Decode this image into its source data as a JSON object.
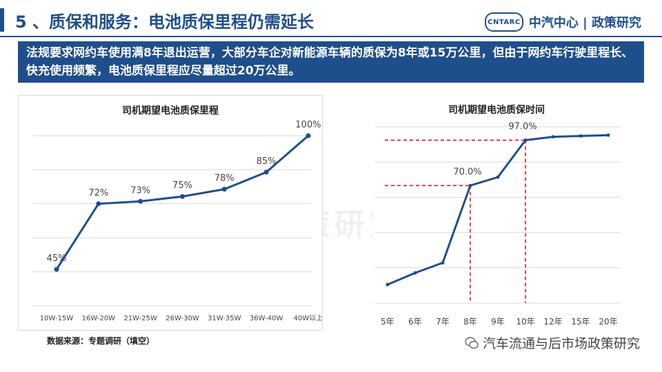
{
  "header": {
    "title": "5 、质保和服务：电池质保里程仍需延长",
    "brand_logo": "CNTARC",
    "brand_text": "中汽中心 | 政策研究"
  },
  "banner": {
    "text": "法规要求网约车使用满8年退出运营，大部分车企对新能源车辆的质保为8年或15万公里，但由于网约车行驶里程长、快充使用频繁，电池质保里程应尽量超过20万公里。"
  },
  "source": "数据来源：专题调研（填空）",
  "footer_account": "汽车流通与后市场政策研究",
  "watermark": "中汽中心 | 政策研究",
  "colors": {
    "line": "#1f4e8c",
    "guide": "#e00000",
    "grid": "#d9d9d9"
  },
  "chart_data": [
    {
      "type": "line",
      "title": "司机期望电池质保里程",
      "categories": [
        "10W-15W",
        "16W-20W",
        "21W-25W",
        "26W-30W",
        "31W-35W",
        "36W-40W",
        "40W以上"
      ],
      "values": [
        45,
        72,
        73,
        75,
        78,
        85,
        100
      ],
      "labels": [
        "45%",
        "72%",
        "73%",
        "75%",
        "78%",
        "85%",
        "100%"
      ],
      "ylim": [
        30,
        100
      ],
      "grid": true
    },
    {
      "type": "line",
      "title": "司机期望电池质保时间",
      "categories": [
        "5年",
        "6年",
        "7年",
        "8年",
        "9年",
        "10年",
        "12年",
        "15年",
        "20年"
      ],
      "values": [
        11,
        18,
        24,
        70,
        75,
        97,
        99,
        99.5,
        100
      ],
      "annotations": [
        {
          "index": 3,
          "label": "70.0%"
        },
        {
          "index": 5,
          "label": "97.0%"
        }
      ],
      "ylim": [
        0,
        105
      ],
      "grid": true
    }
  ]
}
